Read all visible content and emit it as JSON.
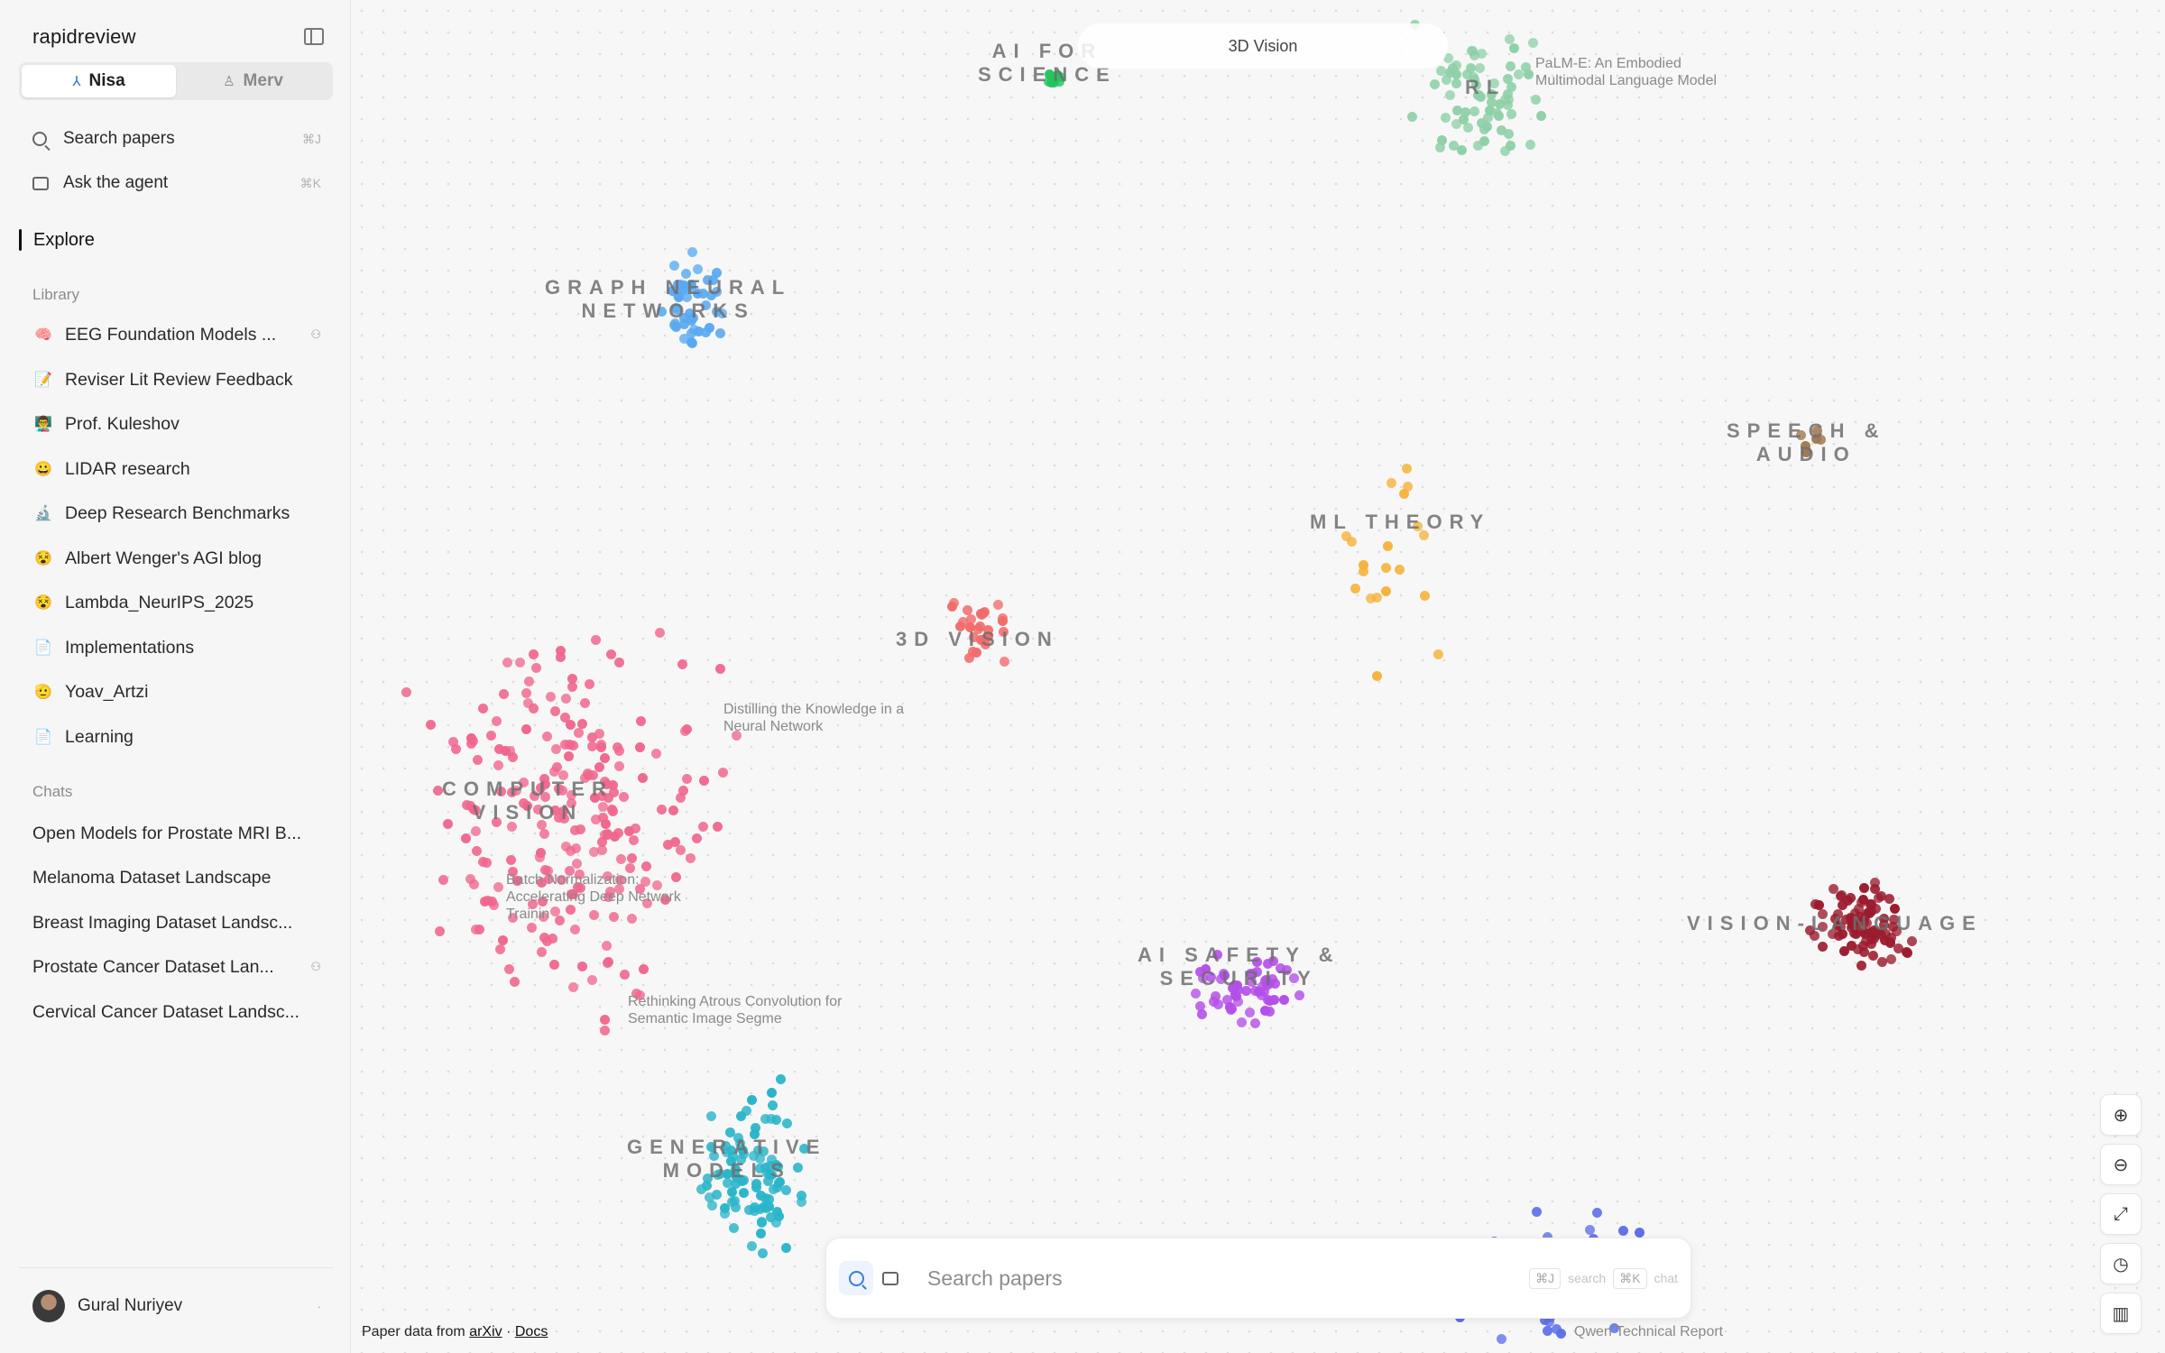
{
  "app": {
    "brand": "rapidreview"
  },
  "workspaces": [
    {
      "label": "Nisa",
      "icon": "share-icon",
      "active": true
    },
    {
      "label": "Merv",
      "icon": "person-icon",
      "active": false
    }
  ],
  "nav": {
    "search": {
      "label": "Search papers",
      "shortcut": "⌘J"
    },
    "agent": {
      "label": "Ask the agent",
      "shortcut": "⌘K"
    },
    "explore": "Explore"
  },
  "library": {
    "heading": "Library",
    "items": [
      {
        "emoji": "🧠",
        "label": "EEG Foundation Models ...",
        "shared": true
      },
      {
        "emoji": "📝",
        "label": "Reviser Lit Review Feedback",
        "shared": false
      },
      {
        "emoji": "👨‍🏫",
        "label": "Prof. Kuleshov",
        "shared": false
      },
      {
        "emoji": "😀",
        "label": "LIDAR research",
        "shared": false
      },
      {
        "emoji": "🔬",
        "label": "Deep Research Benchmarks",
        "shared": false
      },
      {
        "emoji": "😵",
        "label": "Albert Wenger's AGI blog",
        "shared": false
      },
      {
        "emoji": "😵",
        "label": "Lambda_NeurIPS_2025",
        "shared": false
      },
      {
        "emoji": "📄",
        "label": "Implementations",
        "shared": false
      },
      {
        "emoji": "🫡",
        "label": "Yoav_Artzi",
        "shared": false
      },
      {
        "emoji": "📄",
        "label": "Learning",
        "shared": false
      }
    ]
  },
  "chats": {
    "heading": "Chats",
    "items": [
      {
        "label": "Open Models for Prostate MRI B...",
        "shared": false
      },
      {
        "label": "Melanoma Dataset Landscape",
        "shared": false
      },
      {
        "label": "Breast Imaging Dataset Landsc...",
        "shared": false
      },
      {
        "label": "Prostate Cancer Dataset Lan...",
        "shared": true
      },
      {
        "label": "Cervical Cancer Dataset Landsc...",
        "shared": false
      }
    ]
  },
  "user": {
    "name": "Gural Nuriyev"
  },
  "map": {
    "hover_pill": "3D Vision",
    "clusters": [
      {
        "id": "ai-for-science",
        "label": "AI FOR\nSCIENCE",
        "color": "#22c55e"
      },
      {
        "id": "rl",
        "label": "RL",
        "color": "#8fd0a8"
      },
      {
        "id": "graph-neural-networks",
        "label": "GRAPH NEURAL\nNETWORKS",
        "color": "#5aa9f0"
      },
      {
        "id": "speech-audio",
        "label": "SPEECH &\nAUDIO",
        "color": "#a07850"
      },
      {
        "id": "ml-theory",
        "label": "ML THEORY",
        "color": "#f5b33c"
      },
      {
        "id": "3d-vision",
        "label": "3D VISION",
        "color": "#f26b6b"
      },
      {
        "id": "computer-vision",
        "label": "COMPUTER\nVISION",
        "color": "#f0678e"
      },
      {
        "id": "vision-language",
        "label": "VISION-LANGUAGE",
        "color": "#9b1c2e"
      },
      {
        "id": "ai-safety",
        "label": "AI SAFETY &\nSECURITY",
        "color": "#b44fe8"
      },
      {
        "id": "generative-models",
        "label": "GENERATIVE\nMODELS",
        "color": "#2bb5c9"
      },
      {
        "id": "llm",
        "label": "",
        "color": "#5b6ee8"
      }
    ],
    "paper_labels": [
      "PaLM-E: An Embodied\nMultimodal Language Model",
      "Distilling the Knowledge in a\nNeural Network",
      "Batch Normalization:\nAccelerating Deep Network\nTrainin",
      "Rethinking Atrous Convolution for\nSemantic Image Segme",
      "Qwen Technical Report"
    ]
  },
  "searchbar": {
    "placeholder": "Search papers",
    "hint_search_key": "⌘J",
    "hint_search_label": "search",
    "hint_chat_key": "⌘K",
    "hint_chat_label": "chat"
  },
  "controls": [
    {
      "icon": "zoom-in-icon"
    },
    {
      "icon": "zoom-out-icon"
    },
    {
      "icon": "fit-screen-icon"
    },
    {
      "icon": "history-icon"
    },
    {
      "icon": "map-icon"
    }
  ],
  "attribution": {
    "prefix": "Paper data from",
    "source": "arXiv",
    "sep": "·",
    "docs": "Docs"
  }
}
